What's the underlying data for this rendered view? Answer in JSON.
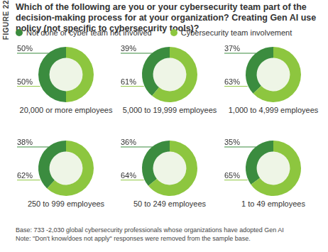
{
  "figure_label": "FIGURE 22",
  "title": "Which of the following are you or your cybersecurity team part of the decision-making process for at your organization? Creating Gen AI use policy (not specific to cybersecurity tools)?",
  "notes": [
    "Base: 733 -2,030 global cybersecurity professionals whose organizations have adopted Gen AI",
    "Note: \"Don't know/does not apply\" responses were removed from the sample base."
  ],
  "chart_data": [
    {
      "type": "doughnut",
      "title": "20,000 or more employees",
      "categories": [
        "Not done or cyber team not involved",
        "Cybersecurity team involvement"
      ],
      "values": [
        50,
        50
      ],
      "value_labels": [
        "50%",
        "50%"
      ],
      "colors": [
        "#3b8c3f",
        "#8dc63f"
      ],
      "data_labels": true,
      "legend": "top"
    },
    {
      "type": "doughnut",
      "title": "5,000 to 19,999 employees",
      "categories": [
        "Not done or cyber team not involved",
        "Cybersecurity team involvement"
      ],
      "values": [
        39,
        61
      ],
      "value_labels": [
        "39%",
        "61%"
      ],
      "colors": [
        "#3b8c3f",
        "#8dc63f"
      ],
      "data_labels": true,
      "legend": "top"
    },
    {
      "type": "doughnut",
      "title": "1,000 to 4,999 employees",
      "categories": [
        "Not done or cyber team not involved",
        "Cybersecurity team involvement"
      ],
      "values": [
        37,
        63
      ],
      "value_labels": [
        "37%",
        "63%"
      ],
      "colors": [
        "#3b8c3f",
        "#8dc63f"
      ],
      "data_labels": true,
      "legend": "top"
    },
    {
      "type": "doughnut",
      "title": "250 to 999 employees",
      "categories": [
        "Not done or cyber team not involved",
        "Cybersecurity team involvement"
      ],
      "values": [
        38,
        62
      ],
      "value_labels": [
        "38%",
        "62%"
      ],
      "colors": [
        "#3b8c3f",
        "#8dc63f"
      ],
      "data_labels": true,
      "legend": "top"
    },
    {
      "type": "doughnut",
      "title": "50 to 249 employees",
      "categories": [
        "Not done or cyber team not involved",
        "Cybersecurity team involvement"
      ],
      "values": [
        36,
        64
      ],
      "value_labels": [
        "36%",
        "64%"
      ],
      "colors": [
        "#3b8c3f",
        "#8dc63f"
      ],
      "data_labels": true,
      "legend": "top"
    },
    {
      "type": "doughnut",
      "title": "1 to 49 employees",
      "categories": [
        "Not done or cyber team not involved",
        "Cybersecurity team involvement"
      ],
      "values": [
        35,
        65
      ],
      "value_labels": [
        "35%",
        "65%"
      ],
      "colors": [
        "#3b8c3f",
        "#8dc63f"
      ],
      "data_labels": true,
      "legend": "top"
    }
  ]
}
